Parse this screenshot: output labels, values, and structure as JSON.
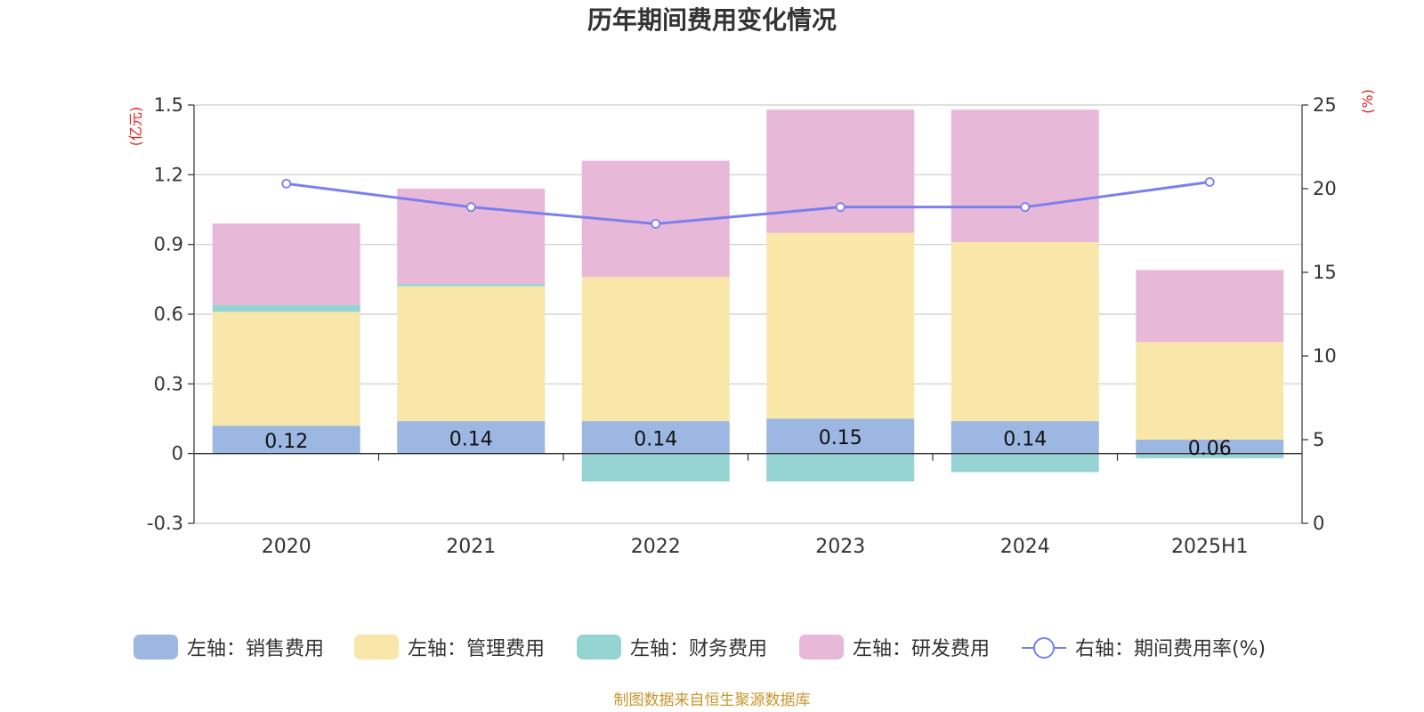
{
  "chart_data": {
    "type": "bar",
    "title": "历年期间费用变化情况",
    "categories": [
      "2020",
      "2021",
      "2022",
      "2023",
      "2024",
      "2025H1"
    ],
    "left_axis": {
      "unit": "(亿元)",
      "ylim": [
        -0.3,
        1.5
      ],
      "ticks": [
        "1.5",
        "1.2",
        "0.9",
        "0.6",
        "0.3",
        "0",
        "-0.3"
      ],
      "tick_values": [
        1.5,
        1.2,
        0.9,
        0.6,
        0.3,
        0,
        -0.3
      ]
    },
    "right_axis": {
      "unit": "(%)",
      "ylim": [
        0,
        25
      ],
      "ticks": [
        "25",
        "20",
        "15",
        "10",
        "5",
        "0"
      ],
      "tick_values": [
        25,
        20,
        15,
        10,
        5,
        0
      ]
    },
    "series": [
      {
        "name": "左轴：销售费用",
        "type": "bar",
        "stack": true,
        "axis": "left",
        "color": "#9db7e3",
        "values": [
          0.12,
          0.14,
          0.14,
          0.15,
          0.14,
          0.06
        ],
        "labels": [
          "0.12",
          "0.14",
          "0.14",
          "0.15",
          "0.14",
          "0.06"
        ]
      },
      {
        "name": "左轴：管理费用",
        "type": "bar",
        "stack": true,
        "axis": "left",
        "color": "#f8e7a8",
        "values": [
          0.49,
          0.58,
          0.62,
          0.8,
          0.77,
          0.42
        ]
      },
      {
        "name": "左轴：财务费用",
        "type": "bar",
        "stack": true,
        "axis": "left",
        "color": "#96d4d4",
        "values": [
          0.03,
          0.01,
          -0.12,
          -0.12,
          -0.08,
          -0.02
        ]
      },
      {
        "name": "左轴：研发费用",
        "type": "bar",
        "stack": true,
        "axis": "left",
        "color": "#e8b8d9",
        "values": [
          0.35,
          0.41,
          0.5,
          0.53,
          0.57,
          0.31
        ]
      },
      {
        "name": "右轴：期间费用率(%)",
        "type": "line",
        "axis": "right",
        "color": "#7b7fee",
        "values": [
          20.3,
          18.9,
          17.9,
          18.9,
          18.9,
          20.4
        ]
      }
    ],
    "grid": true,
    "legend_position": "bottom",
    "footer": "制图数据来自恒生聚源数据库"
  }
}
